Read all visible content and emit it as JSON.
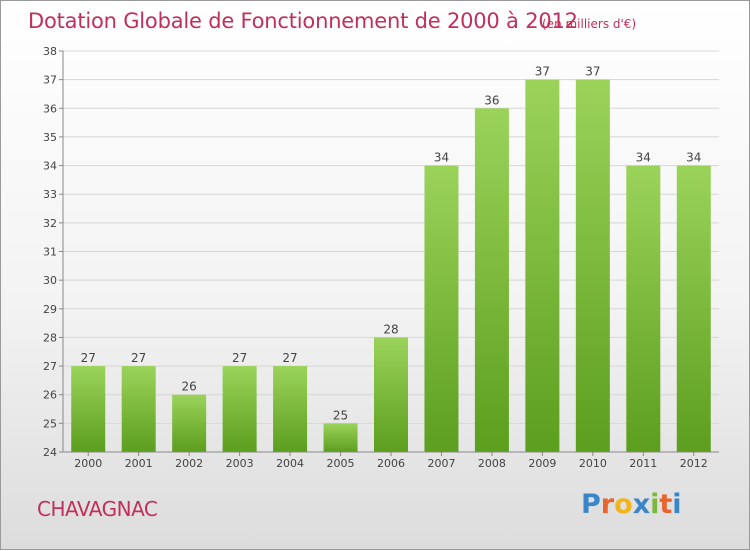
{
  "title": "Dotation Globale de Fonctionnement de 2000 à 2012",
  "units": "(en milliers d'€)",
  "commune": "CHAVAGNAC",
  "logo": {
    "text": "Proxiti",
    "letters": [
      {
        "ch": "P",
        "color": "#3a86c8"
      },
      {
        "ch": "r",
        "color": "#e8642c"
      },
      {
        "ch": "o",
        "color": "#f0b41c"
      },
      {
        "ch": "x",
        "color": "#3a86c8"
      },
      {
        "ch": "i",
        "color": "#7ab83c"
      },
      {
        "ch": "t",
        "color": "#e8642c"
      },
      {
        "ch": "i",
        "color": "#3a86c8"
      }
    ]
  },
  "colors": {
    "bar_light": "#9bd35a",
    "bar_dark": "#5c9e1e",
    "title": "#c0305a",
    "grid": "#d6d6d6"
  },
  "chart_data": {
    "type": "bar",
    "title": "Dotation Globale de Fonctionnement de 2000 à 2012",
    "subtitle": "(en milliers d'€)",
    "categories": [
      "2000",
      "2001",
      "2002",
      "2003",
      "2004",
      "2005",
      "2006",
      "2007",
      "2008",
      "2009",
      "2010",
      "2011",
      "2012"
    ],
    "values": [
      27,
      27,
      26,
      27,
      27,
      25,
      28,
      34,
      36,
      37,
      37,
      34,
      34
    ],
    "ylim": [
      24,
      38
    ],
    "yticks": [
      24,
      25,
      26,
      27,
      28,
      29,
      30,
      31,
      32,
      33,
      34,
      35,
      36,
      37,
      38
    ],
    "grid": true
  }
}
